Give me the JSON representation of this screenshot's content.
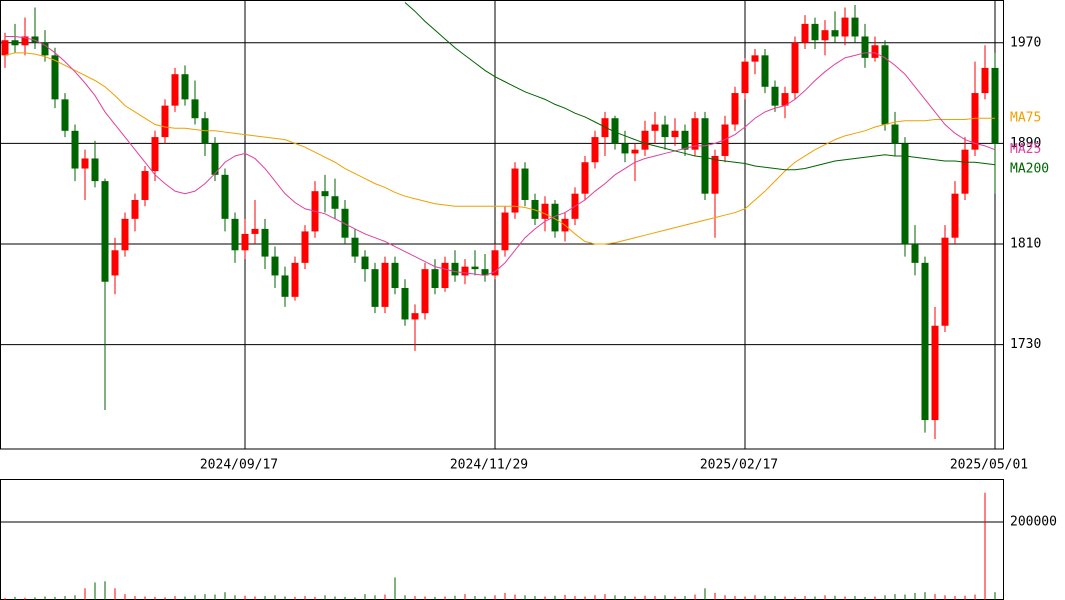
{
  "chart_data": [
    {
      "type": "candlestick",
      "xlim": [
        -0.5,
        99.5
      ],
      "xticks": [
        {
          "value": 24,
          "label": "2024/09/17"
        },
        {
          "value": 49,
          "label": "2024/11/29"
        },
        {
          "value": 74,
          "label": "2025/02/17"
        },
        {
          "value": 99,
          "label": "2025/05/01"
        }
      ],
      "ylim": [
        1647,
        2004
      ],
      "yticks": [
        1730,
        1810,
        1890,
        1970
      ],
      "grid": true,
      "up_color": "#ff0000",
      "down_color": "#006400",
      "candles": [
        [
          1960,
          1978,
          1950,
          1972
        ],
        [
          1972,
          1985,
          1962,
          1968
        ],
        [
          1968,
          1990,
          1960,
          1975
        ],
        [
          1975,
          1998,
          1965,
          1970
        ],
        [
          1970,
          1980,
          1955,
          1960
        ],
        [
          1960,
          1966,
          1918,
          1925
        ],
        [
          1925,
          1930,
          1895,
          1900
        ],
        [
          1900,
          1905,
          1860,
          1870
        ],
        [
          1870,
          1885,
          1845,
          1878
        ],
        [
          1878,
          1892,
          1855,
          1860
        ],
        [
          1860,
          1862,
          1678,
          1780
        ],
        [
          1785,
          1815,
          1770,
          1805
        ],
        [
          1805,
          1835,
          1800,
          1830
        ],
        [
          1830,
          1850,
          1820,
          1845
        ],
        [
          1845,
          1872,
          1840,
          1868
        ],
        [
          1868,
          1900,
          1860,
          1895
        ],
        [
          1895,
          1925,
          1890,
          1920
        ],
        [
          1920,
          1950,
          1915,
          1945
        ],
        [
          1945,
          1952,
          1920,
          1925
        ],
        [
          1925,
          1940,
          1905,
          1910
        ],
        [
          1910,
          1915,
          1880,
          1890
        ],
        [
          1890,
          1895,
          1860,
          1865
        ],
        [
          1865,
          1870,
          1820,
          1830
        ],
        [
          1830,
          1835,
          1795,
          1805
        ],
        [
          1805,
          1830,
          1798,
          1818
        ],
        [
          1818,
          1845,
          1810,
          1822
        ],
        [
          1822,
          1830,
          1790,
          1800
        ],
        [
          1800,
          1808,
          1775,
          1785
        ],
        [
          1785,
          1792,
          1760,
          1768
        ],
        [
          1768,
          1800,
          1765,
          1795
        ],
        [
          1795,
          1825,
          1790,
          1820
        ],
        [
          1820,
          1860,
          1815,
          1852
        ],
        [
          1852,
          1865,
          1835,
          1848
        ],
        [
          1848,
          1862,
          1830,
          1838
        ],
        [
          1838,
          1845,
          1810,
          1815
        ],
        [
          1815,
          1822,
          1795,
          1800
        ],
        [
          1800,
          1805,
          1780,
          1790
        ],
        [
          1790,
          1795,
          1755,
          1760
        ],
        [
          1760,
          1800,
          1755,
          1795
        ],
        [
          1795,
          1800,
          1770,
          1775
        ],
        [
          1775,
          1782,
          1745,
          1750
        ],
        [
          1750,
          1762,
          1725,
          1755
        ],
        [
          1755,
          1795,
          1750,
          1790
        ],
        [
          1790,
          1798,
          1770,
          1775
        ],
        [
          1775,
          1800,
          1772,
          1795
        ],
        [
          1795,
          1805,
          1780,
          1785
        ],
        [
          1785,
          1798,
          1778,
          1792
        ],
        [
          1792,
          1805,
          1785,
          1790
        ],
        [
          1790,
          1802,
          1780,
          1785
        ],
        [
          1785,
          1810,
          1782,
          1805
        ],
        [
          1805,
          1840,
          1800,
          1835
        ],
        [
          1835,
          1875,
          1830,
          1870
        ],
        [
          1870,
          1875,
          1840,
          1845
        ],
        [
          1845,
          1850,
          1825,
          1830
        ],
        [
          1830,
          1848,
          1820,
          1842
        ],
        [
          1842,
          1845,
          1815,
          1820
        ],
        [
          1820,
          1835,
          1812,
          1830
        ],
        [
          1830,
          1855,
          1825,
          1850
        ],
        [
          1850,
          1880,
          1845,
          1875
        ],
        [
          1875,
          1900,
          1870,
          1895
        ],
        [
          1895,
          1915,
          1880,
          1910
        ],
        [
          1910,
          1912,
          1885,
          1890
        ],
        [
          1890,
          1900,
          1875,
          1882
        ],
        [
          1882,
          1890,
          1860,
          1885
        ],
        [
          1885,
          1908,
          1880,
          1900
        ],
        [
          1900,
          1915,
          1890,
          1905
        ],
        [
          1905,
          1912,
          1885,
          1895
        ],
        [
          1895,
          1910,
          1888,
          1900
        ],
        [
          1900,
          1905,
          1880,
          1885
        ],
        [
          1885,
          1915,
          1880,
          1910
        ],
        [
          1910,
          1915,
          1845,
          1850
        ],
        [
          1850,
          1885,
          1815,
          1880
        ],
        [
          1880,
          1912,
          1875,
          1905
        ],
        [
          1905,
          1935,
          1900,
          1930
        ],
        [
          1930,
          1958,
          1925,
          1955
        ],
        [
          1955,
          1965,
          1945,
          1960
        ],
        [
          1960,
          1965,
          1930,
          1935
        ],
        [
          1935,
          1940,
          1915,
          1920
        ],
        [
          1920,
          1935,
          1910,
          1930
        ],
        [
          1930,
          1975,
          1925,
          1970
        ],
        [
          1970,
          1992,
          1965,
          1985
        ],
        [
          1985,
          1990,
          1965,
          1972
        ],
        [
          1972,
          1988,
          1960,
          1980
        ],
        [
          1980,
          1995,
          1970,
          1975
        ],
        [
          1975,
          1998,
          1968,
          1990
        ],
        [
          1990,
          2000,
          1970,
          1975
        ],
        [
          1975,
          1985,
          1950,
          1958
        ],
        [
          1958,
          1975,
          1955,
          1968
        ],
        [
          1968,
          1972,
          1900,
          1905
        ],
        [
          1905,
          1915,
          1880,
          1890
        ],
        [
          1890,
          1895,
          1800,
          1810
        ],
        [
          1810,
          1825,
          1785,
          1795
        ],
        [
          1795,
          1800,
          1660,
          1670
        ],
        [
          1670,
          1760,
          1655,
          1745
        ],
        [
          1745,
          1825,
          1740,
          1815
        ],
        [
          1815,
          1860,
          1810,
          1850
        ],
        [
          1850,
          1895,
          1845,
          1885
        ],
        [
          1885,
          1955,
          1880,
          1930
        ],
        [
          1930,
          1968,
          1925,
          1950
        ],
        [
          1950,
          1962,
          1850,
          1890
        ]
      ],
      "series": [
        {
          "name": "MA75",
          "color": "#f0a000",
          "values": [
            1960,
            1962,
            1962,
            1961,
            1959,
            1956,
            1952,
            1948,
            1944,
            1940,
            1935,
            1928,
            1920,
            1915,
            1910,
            1905,
            1903,
            1902,
            1902,
            1901,
            1900,
            1900,
            1899,
            1898,
            1897,
            1896,
            1895,
            1894,
            1893,
            1890,
            1887,
            1883,
            1879,
            1875,
            1870,
            1866,
            1862,
            1858,
            1855,
            1851,
            1848,
            1846,
            1844,
            1842,
            1841,
            1840,
            1840,
            1840,
            1840,
            1840,
            1840,
            1840,
            1839,
            1837,
            1834,
            1830,
            1825,
            1818,
            1812,
            1810,
            1810,
            1811,
            1813,
            1815,
            1817,
            1819,
            1821,
            1823,
            1825,
            1827,
            1829,
            1831,
            1833,
            1835,
            1838,
            1845,
            1852,
            1860,
            1868,
            1875,
            1880,
            1885,
            1889,
            1893,
            1896,
            1898,
            1900,
            1903,
            1905,
            1907,
            1908,
            1908,
            1908,
            1909,
            1909,
            1909,
            1909,
            1910,
            1910,
            1910
          ]
        },
        {
          "name": "MA25",
          "color": "#e040a0",
          "values": [
            1975,
            1975,
            1974,
            1972,
            1968,
            1962,
            1955,
            1947,
            1938,
            1928,
            1915,
            1905,
            1895,
            1885,
            1875,
            1865,
            1858,
            1852,
            1850,
            1852,
            1858,
            1866,
            1875,
            1880,
            1882,
            1878,
            1870,
            1860,
            1850,
            1843,
            1838,
            1836,
            1834,
            1830,
            1826,
            1822,
            1818,
            1815,
            1812,
            1808,
            1804,
            1800,
            1796,
            1792,
            1790,
            1788,
            1787,
            1786,
            1785,
            1788,
            1795,
            1805,
            1815,
            1822,
            1828,
            1832,
            1835,
            1840,
            1845,
            1852,
            1858,
            1865,
            1870,
            1875,
            1878,
            1880,
            1882,
            1884,
            1886,
            1888,
            1888,
            1890,
            1893,
            1897,
            1903,
            1910,
            1915,
            1918,
            1920,
            1925,
            1932,
            1940,
            1947,
            1953,
            1958,
            1960,
            1962,
            1962,
            1958,
            1952,
            1945,
            1935,
            1925,
            1915,
            1905,
            1898,
            1893,
            1890,
            1888,
            1885
          ]
        },
        {
          "name": "MA200",
          "color": "#006400",
          "values": [
            null,
            null,
            null,
            null,
            null,
            null,
            null,
            null,
            null,
            null,
            null,
            null,
            null,
            null,
            null,
            null,
            null,
            null,
            null,
            null,
            null,
            null,
            null,
            null,
            null,
            null,
            null,
            null,
            null,
            null,
            null,
            null,
            null,
            null,
            null,
            null,
            null,
            null,
            null,
            null,
            2002,
            1995,
            1987,
            1980,
            1973,
            1966,
            1960,
            1954,
            1948,
            1943,
            1939,
            1935,
            1931,
            1928,
            1925,
            1921,
            1918,
            1914,
            1911,
            1907,
            1903,
            1899,
            1896,
            1893,
            1890,
            1888,
            1886,
            1884,
            1882,
            1880,
            1879,
            1877,
            1876,
            1875,
            1874,
            1872,
            1871,
            1870,
            1869,
            1869,
            1870,
            1872,
            1874,
            1876,
            1877,
            1878,
            1879,
            1880,
            1881,
            1880,
            1880,
            1879,
            1878,
            1877,
            1876,
            1876,
            1875,
            1875,
            1874,
            1873
          ]
        }
      ]
    },
    {
      "type": "bar",
      "ylim": [
        0,
        307700
      ],
      "yticks": [
        200000
      ],
      "grid": true,
      "values": [
        5000,
        8000,
        6000,
        7000,
        9000,
        8000,
        10000,
        12000,
        30000,
        45000,
        48000,
        30000,
        15000,
        10000,
        9000,
        8000,
        7000,
        10000,
        9000,
        12000,
        15000,
        14000,
        20000,
        12000,
        11000,
        9000,
        10000,
        12000,
        9000,
        8000,
        10000,
        8000,
        12000,
        9000,
        8000,
        7000,
        15000,
        12000,
        14000,
        58000,
        12000,
        10000,
        9000,
        8000,
        9000,
        11000,
        15000,
        10000,
        9000,
        12000,
        18000,
        14000,
        12000,
        10000,
        9000,
        11000,
        13000,
        10000,
        9000,
        12000,
        15000,
        12000,
        10000,
        9000,
        11000,
        10000,
        12000,
        9000,
        10000,
        14000,
        30000,
        18000,
        12000,
        10000,
        9000,
        12000,
        11000,
        10000,
        9000,
        8000,
        10000,
        9000,
        12000,
        11000,
        9000,
        10000,
        8000,
        9000,
        12000,
        15000,
        14000,
        18000,
        20000,
        15000,
        12000,
        10000,
        11000,
        14000,
        275000,
        20000
      ]
    }
  ]
}
